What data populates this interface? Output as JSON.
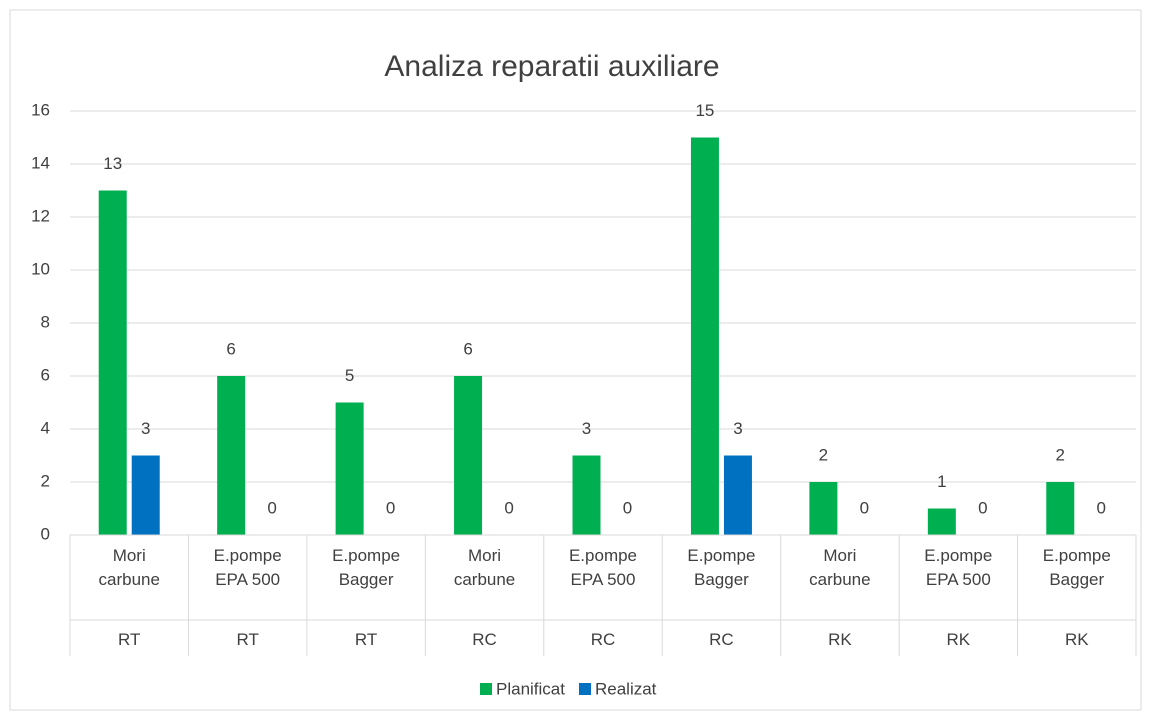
{
  "chart_data": {
    "type": "bar",
    "title": "Analiza reparatii auxiliare",
    "categories": [
      "Mori carbune",
      "E.pompe EPA 500",
      "E.pompe Bagger",
      "Mori carbune",
      "E.pompe EPA 500",
      "E.pompe Bagger",
      "Mori carbune",
      "E.pompe EPA 500",
      "E.pompe Bagger"
    ],
    "groups": [
      "RT",
      "RT",
      "RT",
      "RC",
      "RC",
      "RC",
      "RK",
      "RK",
      "RK"
    ],
    "series": [
      {
        "name": "Planificat",
        "color": "#00b050",
        "values": [
          13,
          6,
          5,
          6,
          3,
          15,
          2,
          1,
          2
        ]
      },
      {
        "name": "Realizat",
        "color": "#0070c0",
        "values": [
          3,
          0,
          0,
          0,
          0,
          3,
          0,
          0,
          0
        ]
      }
    ],
    "ylim": [
      0,
      16
    ],
    "yticks": [
      0,
      2,
      4,
      6,
      8,
      10,
      12,
      14,
      16
    ],
    "grid": true,
    "legend": "bottom"
  }
}
